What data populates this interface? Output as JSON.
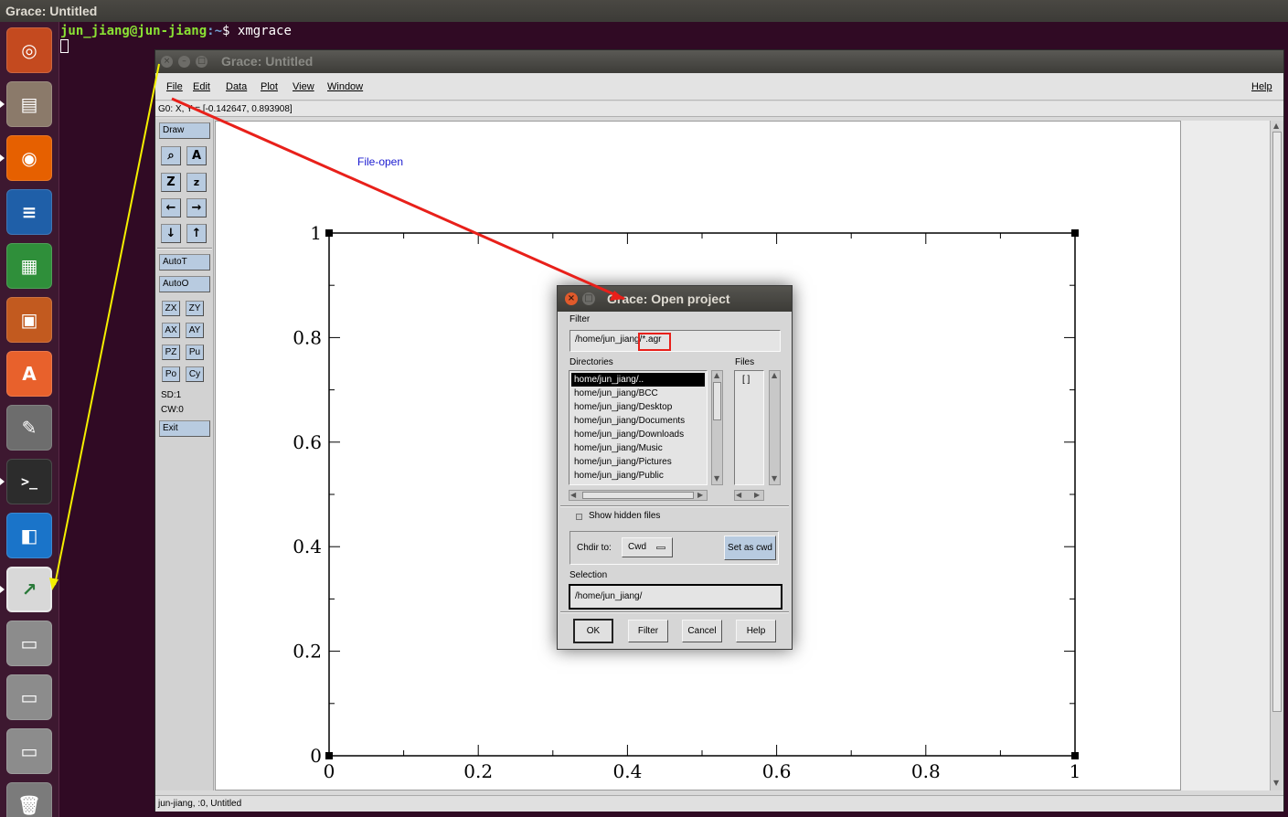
{
  "top_bar": {
    "title": "Grace: Untitled"
  },
  "terminal": {
    "user_host": "jun_jiang@jun-jiang",
    "path": ":~",
    "prompt_symbol": "$",
    "command": "xmgrace"
  },
  "launcher": {
    "items": [
      {
        "name": "ubuntu-dash",
        "color": "#c44a1f"
      },
      {
        "name": "files",
        "color": "#8b7a6a"
      },
      {
        "name": "firefox",
        "color": "#e66000"
      },
      {
        "name": "libreoffice-writer",
        "color": "#1f5fa8"
      },
      {
        "name": "libreoffice-calc",
        "color": "#2f8f3a"
      },
      {
        "name": "libreoffice-impress",
        "color": "#c25a1f"
      },
      {
        "name": "software-center",
        "color": "#e8612c"
      },
      {
        "name": "system-settings",
        "color": "#6d6d6d"
      },
      {
        "name": "terminal",
        "color": "#2c2c2c"
      },
      {
        "name": "virtualbox",
        "color": "#1a74c9"
      },
      {
        "name": "grace",
        "color": "#d8d8d8"
      },
      {
        "name": "drive-1",
        "color": "#8c8c8c"
      },
      {
        "name": "drive-2",
        "color": "#8c8c8c"
      },
      {
        "name": "drive-3",
        "color": "#8c8c8c"
      },
      {
        "name": "trash",
        "color": "#7b7b7b"
      }
    ]
  },
  "grace": {
    "title": "Grace: Untitled",
    "menus": [
      "File",
      "Edit",
      "Data",
      "Plot",
      "View",
      "Window"
    ],
    "help": "Help",
    "locator": "G0: X, Y = [-0.142647, 0.893908]",
    "toolbox": {
      "draw": "Draw",
      "autot": "AutoT",
      "autoo": "AutoO",
      "small_buttons": [
        "ZX",
        "ZY",
        "AX",
        "AY",
        "PZ",
        "Pu",
        "Po",
        "Cy"
      ],
      "sd": "SD:1",
      "cw": "CW:0",
      "exit": "Exit"
    },
    "status": "jun-jiang, :0, Untitled",
    "annotation": "File-open"
  },
  "chart_data": {
    "type": "line",
    "series": [],
    "xlim": [
      0,
      1
    ],
    "ylim": [
      0,
      1
    ],
    "x_ticks": [
      "0",
      "0.2",
      "0.4",
      "0.6",
      "0.8",
      "1"
    ],
    "y_ticks": [
      "0",
      "0.2",
      "0.4",
      "0.6",
      "0.8",
      "1"
    ],
    "title": "",
    "xlabel": "",
    "ylabel": ""
  },
  "dialog": {
    "title": "Grace: Open project",
    "filter_label": "Filter",
    "filter_value": "/home/jun_jiang/*.agr",
    "directories_label": "Directories",
    "files_label": "Files",
    "directories": [
      "home/jun_jiang/..",
      "home/jun_jiang/BCC",
      "home/jun_jiang/Desktop",
      "home/jun_jiang/Documents",
      "home/jun_jiang/Downloads",
      "home/jun_jiang/Music",
      "home/jun_jiang/Pictures",
      "home/jun_jiang/Public"
    ],
    "files": [
      "[ ]"
    ],
    "show_hidden": "Show hidden files",
    "chdir_label": "Chdir to:",
    "chdir_value": "Cwd",
    "set_cwd": "Set as cwd",
    "selection_label": "Selection",
    "selection_value": "/home/jun_jiang/",
    "buttons": {
      "ok": "OK",
      "filter": "Filter",
      "cancel": "Cancel",
      "help": "Help"
    }
  },
  "colors": {
    "annotation_arrow": "#e8201a",
    "pointer_arrow": "#f4f000",
    "annotation_text": "#1a1ad0",
    "button_blue": "#b8cbe0"
  }
}
